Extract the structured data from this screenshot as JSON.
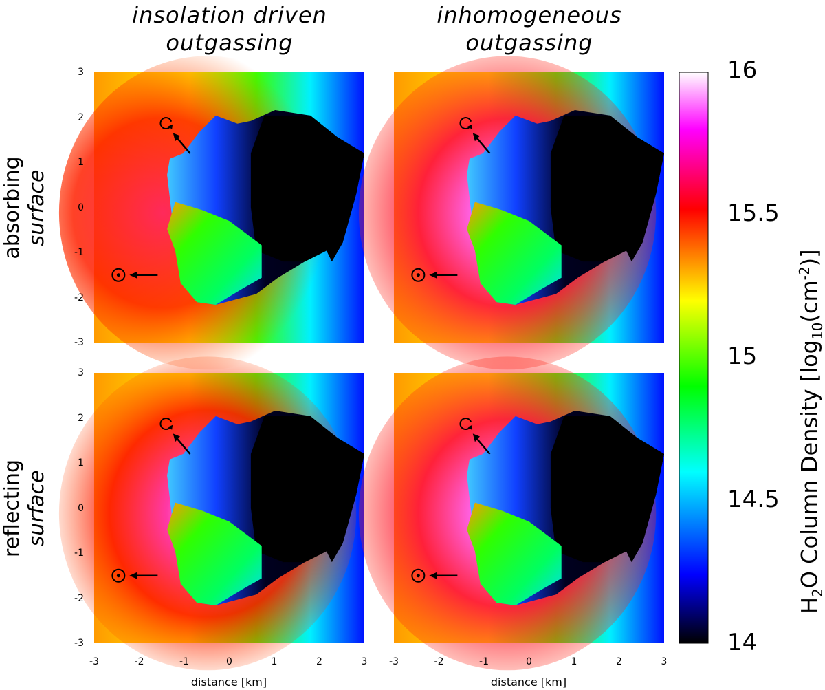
{
  "column_titles": [
    {
      "line1": "insolation driven",
      "line2": "outgassing"
    },
    {
      "line1": "inhomogeneous",
      "line2": "outgassing"
    }
  ],
  "row_titles": [
    {
      "line1": "absorbing",
      "line2": "surface"
    },
    {
      "line1": "reflecting",
      "line2": "surface"
    }
  ],
  "chart_data": {
    "type": "heatmap",
    "panels": [
      {
        "row": "absorbing surface",
        "column": "insolation driven outgassing",
        "peak_log10": 15.6
      },
      {
        "row": "absorbing surface",
        "column": "inhomogeneous outgassing",
        "peak_log10": 16.0
      },
      {
        "row": "reflecting surface",
        "column": "insolation driven outgassing",
        "peak_log10": 15.8
      },
      {
        "row": "reflecting surface",
        "column": "inhomogeneous outgassing",
        "peak_log10": 16.0
      }
    ],
    "xlabel": "distance [km]",
    "xlim": [
      -3,
      3
    ],
    "ylim": [
      -3,
      3
    ],
    "x_ticks": [
      "-3",
      "-2",
      "-1",
      "0",
      "1",
      "2",
      "3"
    ],
    "y_ticks": [
      "3",
      "2",
      "1",
      "0",
      "-1",
      "-2",
      "-3"
    ],
    "colorbar": {
      "label": "H2O Column Density [log10(cm-2)]",
      "label_parts": {
        "pre": "H",
        "sub1": "2",
        "mid": "O Column Density [log",
        "sub2": "10",
        "mid2": "(cm",
        "sup": "-2",
        "post": ")]"
      },
      "min": 14,
      "max": 16,
      "ticks": [
        "16",
        "15.5",
        "15",
        "14.5",
        "14"
      ],
      "stops": [
        "#000000",
        "#0000ff",
        "#00ffff",
        "#00ff00",
        "#ffff00",
        "#ff0000",
        "#ff00ff",
        "#ffffff"
      ]
    },
    "symbols": [
      "sun-symbol",
      "rotation-axis-symbol"
    ]
  }
}
